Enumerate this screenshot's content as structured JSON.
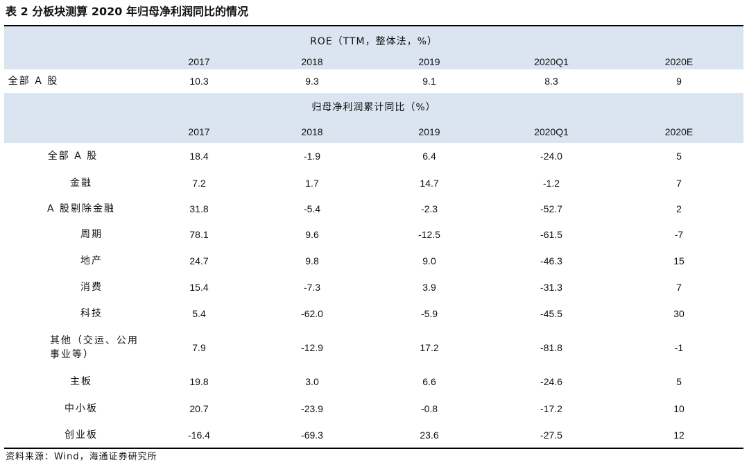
{
  "title": "表 2 分板块测算 2020 年归母净利润同比的情况",
  "roe_section": {
    "group_title": "ROE（TTM，整体法，%）",
    "headers": [
      "2017",
      "2018",
      "2019",
      "2020Q1",
      "2020E"
    ],
    "row": {
      "label": "全部 A 股",
      "values": [
        "10.3",
        "9.3",
        "9.1",
        "8.3",
        "9"
      ]
    }
  },
  "yoy_section": {
    "group_title": "归母净利润累计同比（%）",
    "headers": [
      "2017",
      "2018",
      "2019",
      "2020Q1",
      "2020E"
    ],
    "rows": [
      {
        "label": "全部 A 股",
        "values": [
          "18.4",
          "-1.9",
          "6.4",
          "-24.0",
          "5"
        ]
      },
      {
        "label": "金融",
        "values": [
          "7.2",
          "1.7",
          "14.7",
          "-1.2",
          "7"
        ]
      },
      {
        "label": "A 股剔除金融",
        "values": [
          "31.8",
          "-5.4",
          "-2.3",
          "-52.7",
          "2"
        ]
      },
      {
        "label": "周期",
        "values": [
          "78.1",
          "9.6",
          "-12.5",
          "-61.5",
          "-7"
        ]
      },
      {
        "label": "地产",
        "values": [
          "24.7",
          "9.8",
          "9.0",
          "-46.3",
          "15"
        ]
      },
      {
        "label": "消费",
        "values": [
          "15.4",
          "-7.3",
          "3.9",
          "-31.3",
          "7"
        ]
      },
      {
        "label": "科技",
        "values": [
          "5.4",
          "-62.0",
          "-5.9",
          "-45.5",
          "30"
        ]
      },
      {
        "label": "其他（交运、公用事业等）",
        "values": [
          "7.9",
          "-12.9",
          "17.2",
          "-81.8",
          "-1"
        ]
      },
      {
        "label": "主板",
        "values": [
          "19.8",
          "3.0",
          "6.6",
          "-24.6",
          "5"
        ]
      },
      {
        "label": "中小板",
        "values": [
          "20.7",
          "-23.9",
          "-0.8",
          "-17.2",
          "10"
        ]
      },
      {
        "label": "创业板",
        "values": [
          "-16.4",
          "-69.3",
          "23.6",
          "-27.5",
          "12"
        ]
      }
    ]
  },
  "source": "资料来源：Wind，海通证券研究所"
}
